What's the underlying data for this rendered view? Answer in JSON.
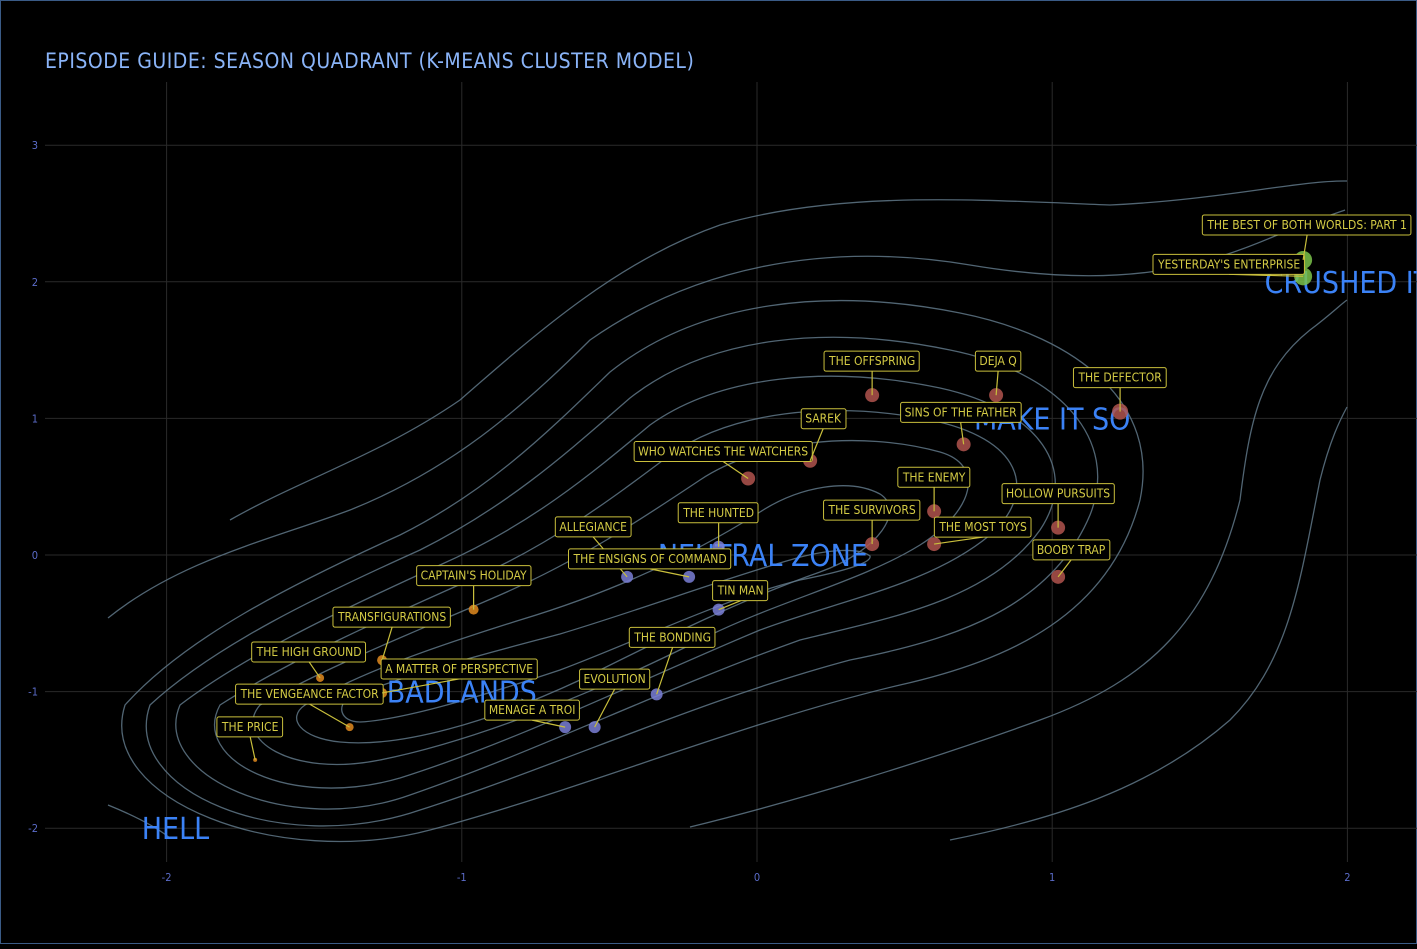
{
  "chart_data": {
    "type": "scatter",
    "title": "EPISODE GUIDE: SEASON QUADRANT (K-MEANS CLUSTER MODEL)",
    "xlabel": "",
    "ylabel": "",
    "xlim": [
      -2.3,
      2.3
    ],
    "ylim": [
      -2.3,
      3.45
    ],
    "x_ticks": [
      -2,
      -1,
      0,
      1,
      2
    ],
    "y_ticks": [
      -2,
      -1,
      0,
      1,
      2,
      3
    ],
    "grid": true,
    "colors": {
      "badlands": "#e08a1e",
      "neutral_zone": "#7a7fd6",
      "make_it_so": "#b0544e",
      "crushed_it": "#7ac24a",
      "label_text": "#d4cb45",
      "cluster_text": "#3b82f6",
      "contour": "#5f7787"
    },
    "clusters": [
      {
        "name": "HELL",
        "x": -1.97,
        "y": -2.0
      },
      {
        "name": "BADLANDS",
        "x": -1.0,
        "y": -1.0
      },
      {
        "name": "NEUTRAL ZONE",
        "x": 0.02,
        "y": 0.0
      },
      {
        "name": "MAKE IT SO",
        "x": 1.0,
        "y": 1.0
      },
      {
        "name": "CRUSHED IT",
        "x": 2.0,
        "y": 2.0
      }
    ],
    "points": [
      {
        "name": "THE PRICE",
        "x": -1.7,
        "y": -1.5,
        "cluster": "badlands",
        "size": 2
      },
      {
        "name": "THE VENGEANCE FACTOR",
        "x": -1.38,
        "y": -1.26,
        "cluster": "badlands",
        "size": 4
      },
      {
        "name": "THE HIGH GROUND",
        "x": -1.48,
        "y": -0.9,
        "cluster": "badlands",
        "size": 4
      },
      {
        "name": "TRANSFIGURATIONS",
        "x": -1.27,
        "y": -0.77,
        "cluster": "badlands",
        "size": 5
      },
      {
        "name": "A MATTER OF PERSPECTIVE",
        "x": -1.27,
        "y": -1.01,
        "cluster": "badlands",
        "size": 5
      },
      {
        "name": "CAPTAIN'S HOLIDAY",
        "x": -0.96,
        "y": -0.4,
        "cluster": "badlands",
        "size": 5
      },
      {
        "name": "MENAGE A TROI",
        "x": -0.65,
        "y": -1.26,
        "cluster": "neutral_zone",
        "size": 6
      },
      {
        "name": "EVOLUTION",
        "x": -0.55,
        "y": -1.26,
        "cluster": "neutral_zone",
        "size": 6
      },
      {
        "name": "THE BONDING",
        "x": -0.34,
        "y": -1.02,
        "cluster": "neutral_zone",
        "size": 6
      },
      {
        "name": "ALLEGIANCE",
        "x": -0.44,
        "y": -0.16,
        "cluster": "neutral_zone",
        "size": 6
      },
      {
        "name": "THE ENSIGNS OF COMMAND",
        "x": -0.23,
        "y": -0.16,
        "cluster": "neutral_zone",
        "size": 6
      },
      {
        "name": "THE HUNTED",
        "x": -0.13,
        "y": 0.06,
        "cluster": "neutral_zone",
        "size": 6
      },
      {
        "name": "TIN MAN",
        "x": -0.13,
        "y": -0.4,
        "cluster": "neutral_zone",
        "size": 6
      },
      {
        "name": "WHO WATCHES THE WATCHERS",
        "x": -0.03,
        "y": 0.56,
        "cluster": "make_it_so",
        "size": 7
      },
      {
        "name": "SAREK",
        "x": 0.18,
        "y": 0.69,
        "cluster": "make_it_so",
        "size": 7
      },
      {
        "name": "THE OFFSPRING",
        "x": 0.39,
        "y": 1.17,
        "cluster": "make_it_so",
        "size": 7
      },
      {
        "name": "THE SURVIVORS",
        "x": 0.39,
        "y": 0.08,
        "cluster": "make_it_so",
        "size": 7
      },
      {
        "name": "THE ENEMY",
        "x": 0.6,
        "y": 0.32,
        "cluster": "make_it_so",
        "size": 7
      },
      {
        "name": "THE MOST TOYS",
        "x": 0.6,
        "y": 0.08,
        "cluster": "make_it_so",
        "size": 7
      },
      {
        "name": "SINS OF THE FATHER",
        "x": 0.7,
        "y": 0.81,
        "cluster": "make_it_so",
        "size": 7
      },
      {
        "name": "DEJA Q",
        "x": 0.81,
        "y": 1.17,
        "cluster": "make_it_so",
        "size": 7
      },
      {
        "name": "THE DEFECTOR",
        "x": 1.23,
        "y": 1.05,
        "cluster": "make_it_so",
        "size": 8
      },
      {
        "name": "HOLLOW PURSUITS",
        "x": 1.02,
        "y": 0.2,
        "cluster": "make_it_so",
        "size": 7
      },
      {
        "name": "BOOBY TRAP",
        "x": 1.02,
        "y": -0.16,
        "cluster": "make_it_so",
        "size": 7
      },
      {
        "name": "YESTERDAY'S ENTERPRISE",
        "x": 1.85,
        "y": 2.04,
        "cluster": "crushed_it",
        "size": 9
      },
      {
        "name": "THE BEST OF BOTH WORLDS: PART 1",
        "x": 1.85,
        "y": 2.16,
        "cluster": "crushed_it",
        "size": 9
      }
    ]
  }
}
